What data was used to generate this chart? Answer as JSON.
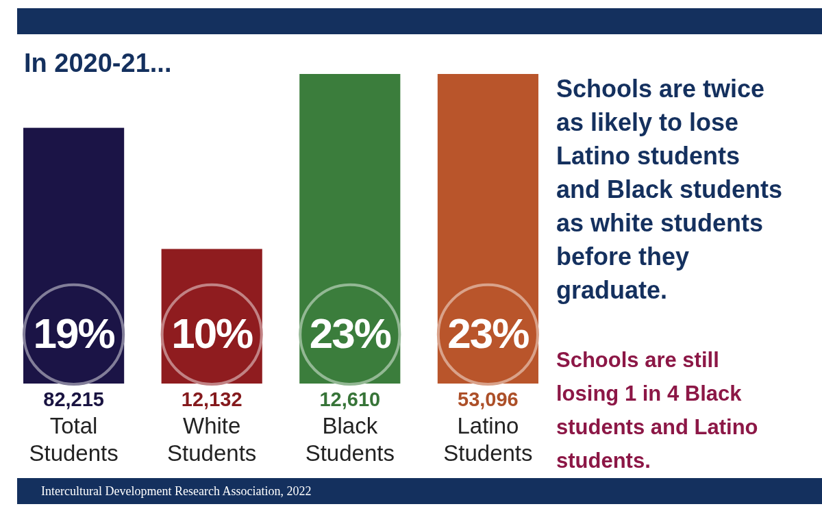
{
  "chart_data": {
    "type": "bar",
    "title": "In 2020-21...",
    "categories": [
      "Total Students",
      "White Students",
      "Black Students",
      "Latino Students"
    ],
    "values": [
      19,
      10,
      23,
      23
    ],
    "colors": [
      "#1b1446",
      "#8f1c1f",
      "#3b7d3c",
      "#b9552b"
    ],
    "value_labels": [
      "19%",
      "10%",
      "23%",
      "23%"
    ],
    "annotations": [
      "82,215",
      "12,132",
      "12,610",
      "53,096",
      "Schools are twice as likely to lose Latino students and Black students as white students before they graduate.",
      "Schools are still losing 1 in 4 Black students and Latino students.",
      "Intercultural Development Research Association, 2022"
    ]
  }
}
